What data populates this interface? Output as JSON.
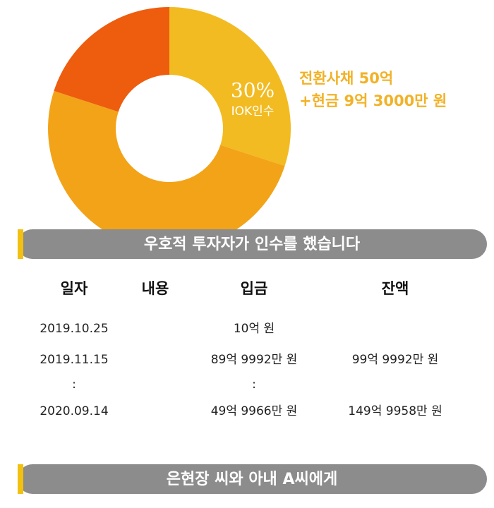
{
  "chart_data": {
    "type": "pie",
    "values": [
      30,
      50,
      20
    ],
    "colors": [
      "#f2bb22",
      "#f3a317",
      "#ee5c0e"
    ],
    "value_labels": [
      "30%",
      null,
      null
    ],
    "annotation": "IOK인수",
    "callout": [
      "전환사채 50억",
      "+현금 9억 3000만 원"
    ],
    "callout_color": "#f2b227"
  },
  "banners": [
    "우호적 투자자가 인수를 했습니다",
    "은현장 씨와 아내 A씨에게"
  ],
  "table": {
    "header": [
      "일자",
      "내용",
      "입금",
      "잔액"
    ],
    "rows": [
      [
        "2019.10.25",
        null,
        "10억 원",
        null
      ],
      [
        "2019.11.15",
        null,
        "89억 9992만 원",
        "99억 9992만 원"
      ],
      [
        ":",
        null,
        ":",
        null
      ],
      [
        "2020.09.14",
        null,
        "49억 9966만 원",
        "149억 9958만 원"
      ]
    ]
  }
}
